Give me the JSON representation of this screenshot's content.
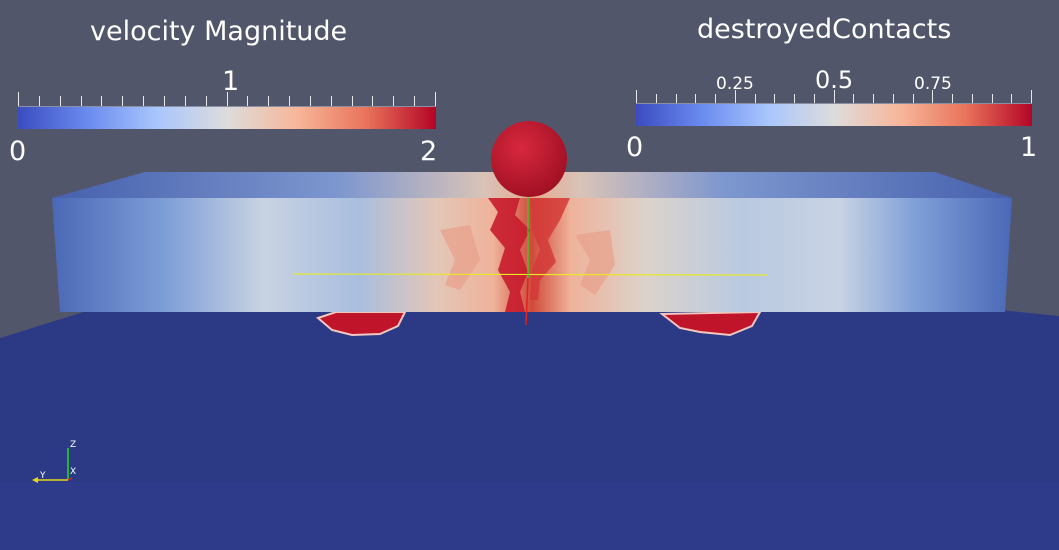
{
  "colorbar_left": {
    "title": "velocity Magnitude",
    "min_label": "0",
    "mid_label": "1",
    "max_label": "2",
    "colors": [
      "#3b4cc0",
      "#6a8bef",
      "#a9c6fd",
      "#dddcdc",
      "#f7b79a",
      "#e8735a",
      "#b40426"
    ]
  },
  "colorbar_right": {
    "title": "destroyedContacts",
    "min_label": "0",
    "label_025": "0.25",
    "label_05": "0.5",
    "label_075": "0.75",
    "max_label": "1",
    "colors": [
      "#3b4cc0",
      "#6a8bef",
      "#a9c6fd",
      "#dddcdc",
      "#f7b79a",
      "#e8735a",
      "#b40426"
    ]
  },
  "orientation_axes": {
    "z_label": "Z",
    "y_label": "Y",
    "x_label": "X",
    "z_color": "#22dd22",
    "y_color": "#e8d81a",
    "x_color": "#dd2222"
  },
  "scene_colors": {
    "background": "#52566b",
    "ground": "#2c3a86",
    "sphere": "#c0142a",
    "slab_edge": "#3a57a8"
  }
}
